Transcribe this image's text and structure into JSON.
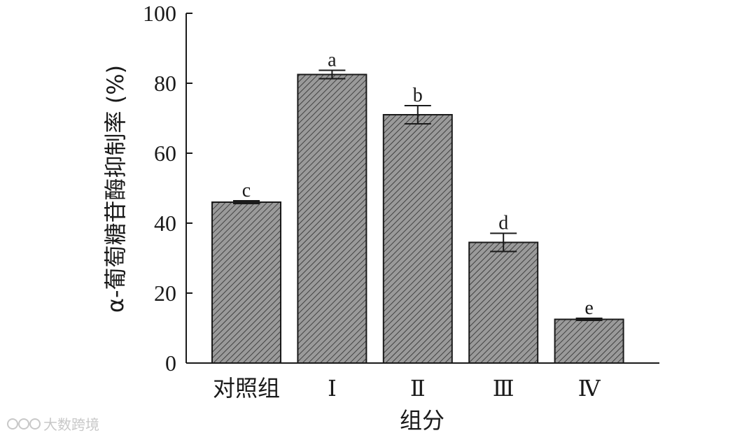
{
  "chart_data": {
    "type": "bar",
    "categories": [
      "对照组",
      "Ⅰ",
      "Ⅱ",
      "Ⅲ",
      "Ⅳ"
    ],
    "values": [
      46,
      82.5,
      71,
      34.5,
      12.5
    ],
    "errors": [
      0.4,
      1.2,
      2.6,
      2.6,
      0.3
    ],
    "significance": [
      "c",
      "a",
      "b",
      "d",
      "e"
    ],
    "xlabel": "组分",
    "ylabel": "α-葡萄糖苷酶抑制率 (%)",
    "ylim": [
      0,
      100
    ],
    "yticks": [
      0,
      20,
      40,
      60,
      80,
      100
    ],
    "grid": false,
    "bar_fill": "#9a9a9a",
    "hatch_color": "#2b2b2b"
  },
  "watermark": "大数跨境"
}
